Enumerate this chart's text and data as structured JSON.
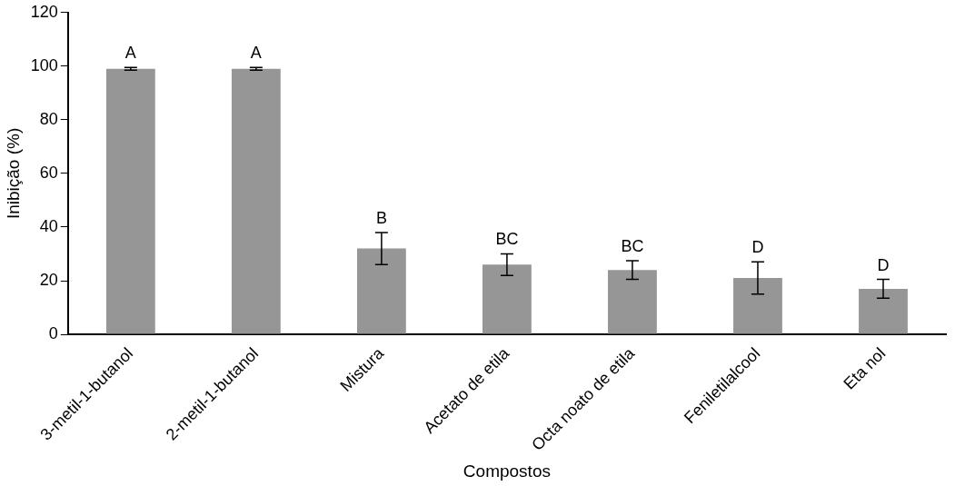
{
  "chart_data": {
    "type": "bar",
    "xlabel": "Compostos",
    "ylabel": "Inibição (%)",
    "categories": [
      "3-metil-1-butanol",
      "2-metil-1-butanol",
      "Mistura",
      "Acetato de etila",
      "Octa noato de etila",
      "Feniletilalcool",
      "Eta nol"
    ],
    "values": [
      99,
      99,
      32,
      26,
      24,
      21,
      17
    ],
    "errors": [
      0.5,
      0.5,
      6,
      4,
      3.5,
      6,
      3.5
    ],
    "color": "#969696",
    "ylim": [
      0,
      120
    ],
    "yticks": [
      0,
      20,
      40,
      60,
      80,
      100,
      120
    ],
    "grid": false,
    "legend": false,
    "annotations": [
      {
        "text": "A",
        "x": "3-metil-1-butanol",
        "y": 99.5
      },
      {
        "text": "A",
        "x": "2-metil-1-butanol",
        "y": 99.5
      },
      {
        "text": "B",
        "x": "Mistura",
        "y": 38
      },
      {
        "text": "BC",
        "x": "Acetato de etila",
        "y": 30
      },
      {
        "text": "BC",
        "x": "Octa noato de etila",
        "y": 27.5
      },
      {
        "text": "D",
        "x": "Feniletilalcool",
        "y": 27
      },
      {
        "text": "D",
        "x": "Eta nol",
        "y": 20.5
      }
    ]
  }
}
